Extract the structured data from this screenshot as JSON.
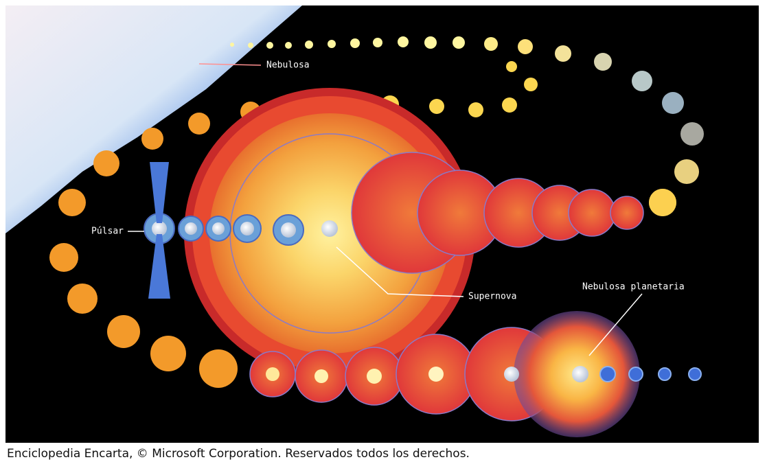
{
  "labels": {
    "nebula": "Nebulosa",
    "pulsar": "Púlsar",
    "supernova": "Supernova",
    "planetary_nebula": "Nebulosa planetaria"
  },
  "caption": "Enciclopedia Encarta, © Microsoft Corporation. Reservados todos los derechos."
}
